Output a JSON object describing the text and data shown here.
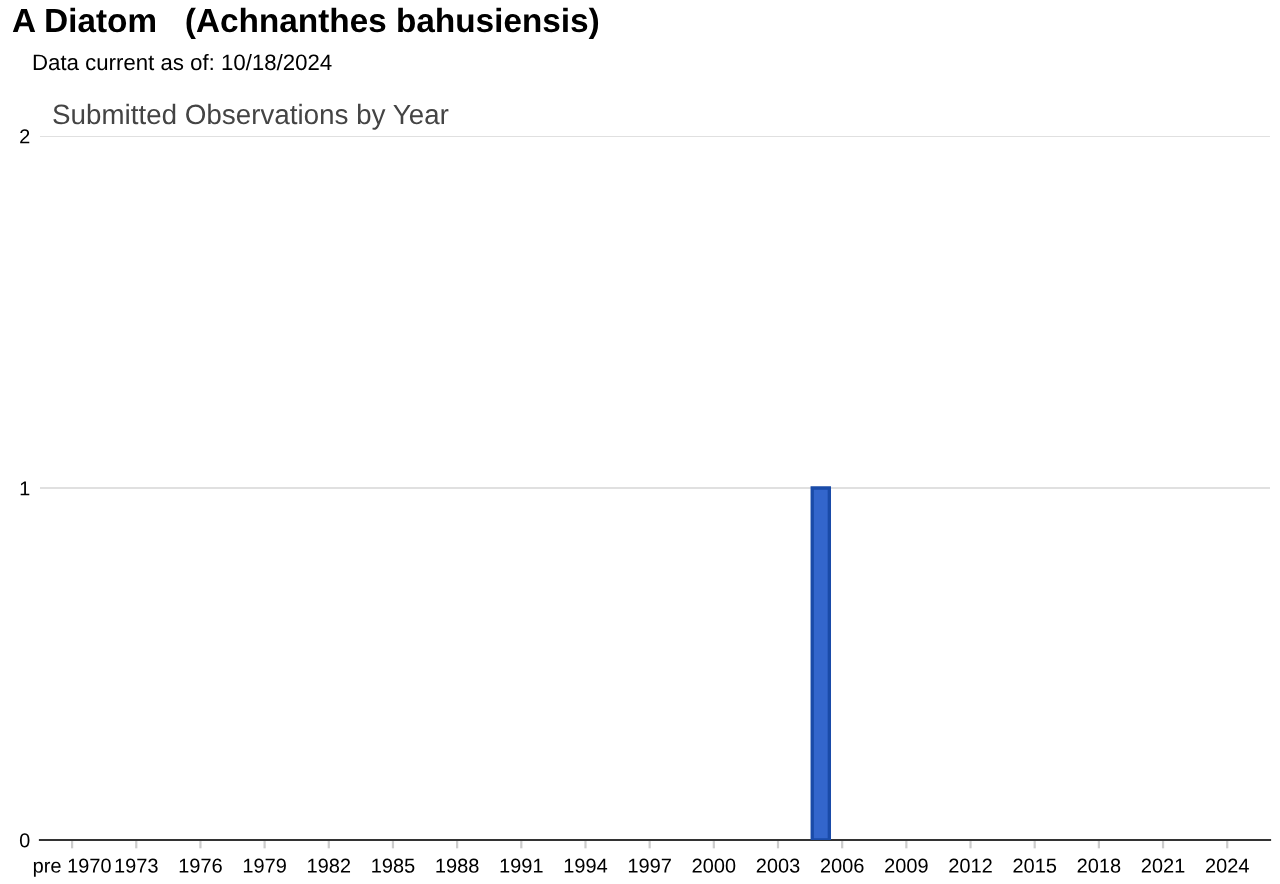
{
  "chart_data": {
    "type": "bar",
    "title": "A Diatom   (Achnanthes bahusiensis)",
    "subtitle": "Data current as of: 10/18/2024",
    "annotations": [
      "Submitted Observations by Year"
    ],
    "x": [
      2005
    ],
    "values": [
      1
    ],
    "color": "#3366cc",
    "xlim": [
      1968.5,
      2026
    ],
    "xticks": [
      {
        "value": 1970,
        "label": "pre 1970"
      },
      1973,
      1976,
      1979,
      1982,
      1985,
      1988,
      1991,
      1994,
      1997,
      2000,
      2003,
      2006,
      2009,
      2012,
      2015,
      2018,
      2021,
      2024
    ],
    "ylim": [
      0,
      2
    ],
    "yticks": [
      0,
      1,
      2
    ],
    "grid": "y"
  }
}
